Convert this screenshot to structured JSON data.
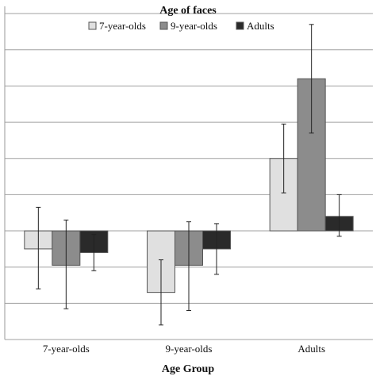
{
  "chart_data": {
    "type": "bar",
    "title": "",
    "legend_title": "Age of faces",
    "legend_position": "top",
    "xlabel": "Age Group",
    "ylabel": "",
    "categories": [
      "7-year-olds",
      "9-year-olds",
      "Adults"
    ],
    "series": [
      {
        "name": "7-year-olds",
        "color": "#e0e0e0",
        "values": [
          -0.5,
          -1.7,
          2.0
        ],
        "error": [
          [
            -1.6,
            0.65
          ],
          [
            -2.6,
            -0.8
          ],
          [
            1.05,
            2.95
          ]
        ]
      },
      {
        "name": "9-year-olds",
        "color": "#8c8c8c",
        "values": [
          -0.95,
          -0.95,
          4.2
        ],
        "error": [
          [
            -2.15,
            0.3
          ],
          [
            -2.2,
            0.25
          ],
          [
            2.7,
            5.7
          ]
        ]
      },
      {
        "name": "Adults",
        "color": "#2a2a2a",
        "values": [
          -0.6,
          -0.5,
          0.4
        ],
        "error": [
          [
            -1.1,
            -0.1
          ],
          [
            -1.2,
            0.2
          ],
          [
            -0.15,
            1.0
          ]
        ]
      }
    ],
    "ylim": [
      -3,
      6.2
    ],
    "gridlines": [
      -3,
      -2,
      -1,
      0,
      1,
      2,
      3,
      4,
      5,
      6
    ],
    "grid": true,
    "y_tick_labels_shown": false
  }
}
